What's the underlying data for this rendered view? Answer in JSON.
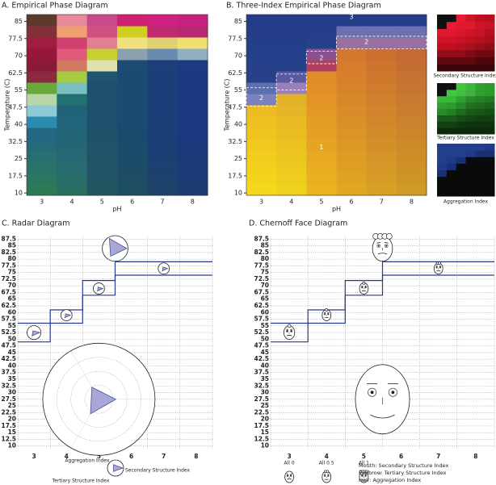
{
  "chart_data": [
    {
      "type": "heatmap",
      "title": "A. Empirical Phase Diagram",
      "xlabel": "pH",
      "ylabel": "Temperature (C)",
      "categories": [
        "3",
        "4",
        "5",
        "6",
        "7",
        "8"
      ],
      "ylim": [
        9,
        88
      ],
      "yticks": [
        10,
        17.5,
        25,
        32.5,
        40,
        47.5,
        55,
        62.5,
        70,
        77.5,
        85
      ],
      "columns": [
        [
          "#2d7a55",
          "#2a7660",
          "#297269",
          "#286e72",
          "#24697c",
          "#226884",
          "#2a8db0",
          "#8ec9d6",
          "#b8d6a8",
          "#6aa83a",
          "#8a2a40",
          "#8b1a3a",
          "#961838",
          "#a01c40",
          "#84303a",
          "#5e3a2c"
        ],
        [
          "#2a6e62",
          "#286c6a",
          "#276a70",
          "#266874",
          "#246676",
          "#236578",
          "#22647a",
          "#226278",
          "#237070",
          "#7ac0c0",
          "#a5cc40",
          "#d07a60",
          "#e05a7a",
          "#d04070",
          "#f0a070",
          "#e88a9a"
        ],
        [
          "#21565f",
          "#215563",
          "#205466",
          "#1f5468",
          "#1f536a",
          "#1e526b",
          "#1e526c",
          "#1e516d",
          "#1e516d",
          "#1e506e",
          "#1f5570",
          "#e0e0b0",
          "#c8d030",
          "#e08090",
          "#d05080",
          "#c84a8a"
        ],
        [
          "#1e4e62",
          "#1e4d65",
          "#1d4c68",
          "#1d4c6a",
          "#1c4b6c",
          "#1c4a6e",
          "#1c4a70",
          "#1c4a71",
          "#1c4a72",
          "#1c4a72",
          "#1c4a73",
          "#1d4b73",
          "#8da0b0",
          "#f0e080",
          "#d0d020",
          "#d02070"
        ],
        [
          "#1d4268",
          "#1c416c",
          "#1c406f",
          "#1b3f72",
          "#1b3f74",
          "#1b3e76",
          "#1b3e77",
          "#1b3e78",
          "#1b3e78",
          "#1b3e79",
          "#1b3e79",
          "#1c3f79",
          "#6a8ab0",
          "#e0d070",
          "#c02a70",
          "#d02080"
        ],
        [
          "#1c3c70",
          "#1b3b74",
          "#1b3a77",
          "#1a3a7a",
          "#1a397c",
          "#1a397e",
          "#1a397f",
          "#1a3980",
          "#1a3980",
          "#1a3980",
          "#1a3981",
          "#1b3a81",
          "#90b0c0",
          "#f0e070",
          "#b82870",
          "#c82080"
        ]
      ]
    },
    {
      "type": "heatmap",
      "title": "B. Three-Index Empirical Phase Diagram",
      "xlabel": "pH",
      "ylabel": "Temperature (C)",
      "categories": [
        "3",
        "4",
        "5",
        "6",
        "7",
        "8"
      ],
      "ylim": [
        9,
        88
      ],
      "yticks": [
        10,
        17.5,
        25,
        32.5,
        40,
        47.5,
        55,
        62.5,
        70,
        77.5,
        85
      ],
      "annotations": [
        "1",
        "2",
        "2",
        "2",
        "2",
        "3"
      ],
      "columns": [
        [
          "#f5d81c",
          "#f4d41c",
          "#f3d01d",
          "#f2cc1e",
          "#f1c81f",
          "#efc420",
          "#eec022",
          "#ecbc24",
          "#7a80c0",
          "#5a70b0",
          "#26408a",
          "#26408a",
          "#25408a",
          "#243f8a",
          "#243e8a",
          "#233d88"
        ],
        [
          "#efd21c",
          "#eece1d",
          "#edca1e",
          "#ecc61f",
          "#ebc220",
          "#eabe22",
          "#e8ba24",
          "#e6b626",
          "#e4b228",
          "#9a80b8",
          "#5a5aa0",
          "#26408a",
          "#25408a",
          "#243f8a",
          "#243e8a",
          "#233d88"
        ],
        [
          "#eab420",
          "#e9b020",
          "#e8ac21",
          "#e7a822",
          "#e6a423",
          "#e5a024",
          "#e49c25",
          "#e39826",
          "#e29427",
          "#e19028",
          "#e08c29",
          "#b04060",
          "#8a5090",
          "#26408a",
          "#243e8a",
          "#233d88"
        ],
        [
          "#e0a822",
          "#dfa423",
          "#dea024",
          "#dd9c25",
          "#dc9826",
          "#db9427",
          "#da9028",
          "#d98c29",
          "#d8882a",
          "#d7842b",
          "#d6802c",
          "#d57c2d",
          "#d4782e",
          "#9a70a0",
          "#6a70b0",
          "#233d88"
        ],
        [
          "#d8a024",
          "#d79c25",
          "#d69826",
          "#d59427",
          "#d49028",
          "#d38c29",
          "#d2882a",
          "#d1842b",
          "#d0802c",
          "#cf7c2d",
          "#ce782e",
          "#cd742f",
          "#cc7030",
          "#9a70a0",
          "#6a70b0",
          "#233d88"
        ],
        [
          "#d09a26",
          "#cf9627",
          "#ce9228",
          "#cd8e29",
          "#cc8a2a",
          "#cb862b",
          "#ca822c",
          "#c97e2d",
          "#c87a2e",
          "#c7762f",
          "#c67230",
          "#c56e31",
          "#c46a32",
          "#9a70a0",
          "#6a70b0",
          "#233d88"
        ]
      ],
      "insets": [
        {
          "label": "Secondary Structure Index",
          "columns": [
            [
              "#3a0508",
              "#60080e",
              "#900c18",
              "#c01020",
              "#d01428",
              "#e01830",
              "#101010",
              "#101010"
            ],
            [
              "#3a0508",
              "#60080e",
              "#900c18",
              "#c01020",
              "#d01428",
              "#e01830",
              "#e81a34",
              "#101010"
            ],
            [
              "#3a0508",
              "#60080e",
              "#900c18",
              "#b80f1e",
              "#c81226",
              "#d8162e",
              "#e01830",
              "#e81a34"
            ],
            [
              "#3a0508",
              "#60080e",
              "#800b16",
              "#a80e1c",
              "#c01020",
              "#d01428",
              "#e01830",
              "#d01428"
            ],
            [
              "#3a0508",
              "#50070c",
              "#700a12",
              "#980d1a",
              "#b80f1e",
              "#c81226",
              "#d01428",
              "#c01020"
            ],
            [
              "#3a0508",
              "#50070c",
              "#700a12",
              "#900c18",
              "#a80e1c",
              "#b80f1e",
              "#c81226",
              "#b80f1e"
            ]
          ]
        },
        {
          "label": "Tertiary Structure Index",
          "columns": [
            [
              "#0a2a0a",
              "#124012",
              "#1a5a1a",
              "#2a8a2a",
              "#30a030",
              "#38b838",
              "#101010",
              "#101010"
            ],
            [
              "#0a2a0a",
              "#124012",
              "#1a5a1a",
              "#248024",
              "#2a9a2a",
              "#38b838",
              "#40c840",
              "#101010"
            ],
            [
              "#0a2a0a",
              "#103810",
              "#164e16",
              "#1e6a1e",
              "#268826",
              "#30a030",
              "#40c040",
              "#40c840"
            ],
            [
              "#0a2a0a",
              "#0e320e",
              "#144614",
              "#1a5a1a",
              "#207020",
              "#2a8a2a",
              "#40b040",
              "#38b838"
            ],
            [
              "#0a2a0a",
              "#0e320e",
              "#124012",
              "#185418",
              "#1e6a1e",
              "#268026",
              "#30a030",
              "#30a030"
            ],
            [
              "#0a2a0a",
              "#0e320e",
              "#124012",
              "#164e16",
              "#1c621c",
              "#247824",
              "#2a9a2a",
              "#2a9a2a"
            ]
          ]
        },
        {
          "label": "Aggregation Index",
          "columns": [
            [
              "#0a0a0a",
              "#0a0a0a",
              "#0a0a0a",
              "#1a3070",
              "#1e3a88",
              "#22408e",
              "#22408e",
              "#22408e"
            ],
            [
              "#0a0a0a",
              "#0a0a0a",
              "#0a0a0a",
              "#0a0a0a",
              "#1a3070",
              "#1e3a88",
              "#22408e",
              "#22408e"
            ],
            [
              "#0a0a0a",
              "#0a0a0a",
              "#0a0a0a",
              "#0a0a0a",
              "#0a0a0a",
              "#1a3070",
              "#22408e",
              "#22408e"
            ],
            [
              "#0a0a0a",
              "#0a0a0a",
              "#0a0a0a",
              "#0a0a0a",
              "#0a0a0a",
              "#0a0a0a",
              "#1e3a88",
              "#22408e"
            ],
            [
              "#0a0a0a",
              "#0a0a0a",
              "#0a0a0a",
              "#0a0a0a",
              "#0a0a0a",
              "#0a0a0a",
              "#1a3070",
              "#22408e"
            ],
            [
              "#0a0a0a",
              "#0a0a0a",
              "#0a0a0a",
              "#0a0a0a",
              "#0a0a0a",
              "#0a0a0a",
              "#1a3070",
              "#1e3a88"
            ]
          ]
        }
      ]
    },
    {
      "type": "radar",
      "title": "C. Radar Diagram",
      "xlim": [
        2.5,
        8.5
      ],
      "xticks": [
        3,
        4,
        5,
        6,
        7,
        8
      ],
      "ylim": [
        9,
        88.5
      ],
      "yticks": [
        10,
        12.5,
        15,
        17.5,
        20,
        22.5,
        25,
        27.5,
        30,
        32.5,
        35,
        37.5,
        40,
        42.5,
        45,
        47.5,
        50,
        52.5,
        55,
        57.5,
        60,
        62.5,
        65,
        67.5,
        70,
        72.5,
        75,
        77.5,
        80,
        82.5,
        85,
        87.5
      ],
      "boundaries": [
        {
          "x": [
            2.5,
            3.5,
            3.5,
            4.5,
            4.5,
            5.5,
            5.5,
            8.5
          ],
          "y": [
            49,
            49,
            56,
            56,
            66.5,
            66.5,
            74,
            74
          ]
        },
        {
          "x": [
            2.5,
            3.5,
            3.5,
            4.5,
            4.5,
            5.5,
            5.5,
            8.5
          ],
          "y": [
            56,
            56,
            61,
            61,
            72,
            72,
            79,
            79
          ]
        }
      ],
      "glyphs": [
        {
          "x": 3,
          "y": 52.5,
          "size": 2.6,
          "values": [
            0.85,
            0.55,
            0.3
          ]
        },
        {
          "x": 4,
          "y": 59,
          "size": 2.1,
          "values": [
            0.7,
            0.5,
            0.3
          ]
        },
        {
          "x": 5,
          "y": 69,
          "size": 2.1,
          "values": [
            0.7,
            0.5,
            0.3
          ]
        },
        {
          "x": 5.5,
          "y": 84,
          "size": 4.8,
          "values": [
            0.9,
            0.7,
            0.9
          ]
        },
        {
          "x": 7,
          "y": 76.5,
          "size": 2.1,
          "values": [
            0.7,
            0.5,
            0.3
          ]
        },
        {
          "x": 5,
          "y": 27.5,
          "size": 21,
          "values": [
            0.3,
            0.3,
            0.25
          ]
        }
      ],
      "legend_labels": [
        "Aggregation Index",
        "Secondary Structure Index",
        "Tertiary Structure Index"
      ],
      "legend_values": [
        0.9,
        0.5,
        0.5
      ]
    },
    {
      "type": "chernoff",
      "title": "D. Chernoff Face Diagram",
      "xlim": [
        2.5,
        8.5
      ],
      "xticks": [
        3,
        4,
        5,
        6,
        7,
        8
      ],
      "ylim": [
        9,
        88.5
      ],
      "yticks": [
        10,
        12.5,
        15,
        17.5,
        20,
        22.5,
        25,
        27.5,
        30,
        32.5,
        35,
        37.5,
        40,
        42.5,
        45,
        47.5,
        50,
        52.5,
        55,
        57.5,
        60,
        62.5,
        65,
        67.5,
        70,
        72.5,
        75,
        77.5,
        80,
        82.5,
        85,
        87.5
      ],
      "boundaries": [
        {
          "x": [
            2.5,
            3.5,
            3.5,
            4.5,
            4.5,
            5.5,
            5.5,
            8.5
          ],
          "y": [
            49,
            49,
            56,
            56,
            66.5,
            66.5,
            74,
            74
          ]
        },
        {
          "x": [
            2.5,
            3.5,
            3.5,
            4.5,
            4.5,
            5.5,
            5.5,
            8.5
          ],
          "y": [
            56,
            56,
            61,
            61,
            72,
            72,
            79,
            79
          ]
        }
      ],
      "glyphs": [
        {
          "x": 3,
          "y": 52.5,
          "size": 2.6,
          "values": [
            0.3,
            0.4,
            0.2
          ]
        },
        {
          "x": 4,
          "y": 59,
          "size": 2.1,
          "values": [
            0.4,
            0.4,
            0.3
          ]
        },
        {
          "x": 5,
          "y": 69,
          "size": 2.1,
          "values": [
            0.4,
            0.5,
            0.3
          ]
        },
        {
          "x": 5.5,
          "y": 84,
          "size": 4.8,
          "values": [
            0.2,
            0.6,
            0.9
          ]
        },
        {
          "x": 7,
          "y": 76.5,
          "size": 2.1,
          "values": [
            0.4,
            0.5,
            0.5
          ]
        },
        {
          "x": 5.5,
          "y": 27.5,
          "size": 13,
          "values": [
            0.8,
            0.5,
            0
          ]
        }
      ],
      "legend_notes": [
        "Mouth: Secondary Structure Index",
        "Eyebrow: Tertiary Structure Index",
        "Hair: Aggregation Index"
      ],
      "legend_faces": [
        {
          "label": "All 0",
          "values": [
            0,
            0,
            0
          ]
        },
        {
          "label": "All 0.5",
          "values": [
            0.5,
            0.5,
            0.5
          ]
        },
        {
          "label": "All 1",
          "values": [
            1,
            1,
            1
          ]
        }
      ]
    }
  ]
}
